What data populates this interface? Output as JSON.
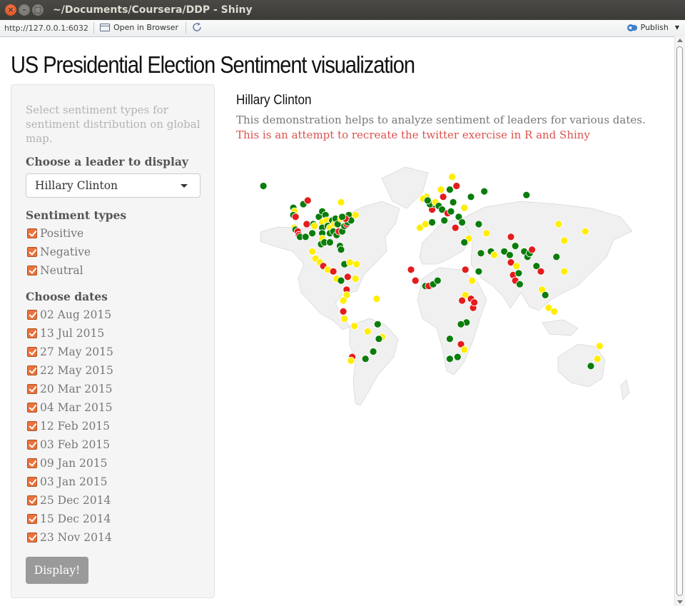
{
  "window": {
    "title": "~/Documents/Coursera/DDP - Shiny",
    "close_glyph": "×",
    "min_glyph": "–",
    "max_glyph": "□"
  },
  "toolbar": {
    "url": "http://127.0.0.1:6032",
    "open_in_browser": "Open in Browser",
    "publish": "Publish",
    "publish_icon": "publish-icon",
    "refresh_icon": "refresh-icon"
  },
  "page": {
    "title": "US Presidential Election Sentiment visualization"
  },
  "sidebar": {
    "help_text": "Select sentiment types for sentiment distribution on global map.",
    "leader_label": "Choose a leader to display",
    "leader_selected": "Hillary Clinton",
    "sentiment_label": "Sentiment types",
    "sentiments": [
      {
        "label": "Positive",
        "checked": true
      },
      {
        "label": "Negative",
        "checked": true
      },
      {
        "label": "Neutral",
        "checked": true
      }
    ],
    "dates_label": "Choose dates",
    "dates": [
      {
        "label": "02 Aug 2015",
        "checked": true
      },
      {
        "label": "13 Jul 2015",
        "checked": true
      },
      {
        "label": "27 May 2015",
        "checked": true
      },
      {
        "label": "22 May 2015",
        "checked": true
      },
      {
        "label": "20 Mar 2015",
        "checked": true
      },
      {
        "label": "04 Mar 2015",
        "checked": true
      },
      {
        "label": "12 Feb 2015",
        "checked": true
      },
      {
        "label": "03 Feb 2015",
        "checked": true
      },
      {
        "label": "09 Jan 2015",
        "checked": true
      },
      {
        "label": "03 Jan 2015",
        "checked": true
      },
      {
        "label": "25 Dec 2014",
        "checked": true
      },
      {
        "label": "15 Dec 2014",
        "checked": true
      },
      {
        "label": "23 Nov 2014",
        "checked": true
      }
    ],
    "button_label": "Display!",
    "accent_color": "#e9733e"
  },
  "main": {
    "heading": "Hillary Clinton",
    "description": "This demonstration helps to analyze sentiment of leaders for various dates.",
    "description_red": "This is an attempt to recreate the twitter exercise in R and Shiny"
  },
  "map": {
    "colors": {
      "positive": "#0a7d0a",
      "negative": "#e51c1c",
      "neutral": "#ffee00",
      "land": "#f0f0f0",
      "border": "#d8d8d8"
    },
    "points": [
      {
        "lon": -150,
        "lat": 61,
        "s": "positive"
      },
      {
        "lon": -123,
        "lat": 49,
        "s": "positive"
      },
      {
        "lon": -122,
        "lat": 47,
        "s": "neutral"
      },
      {
        "lon": -123,
        "lat": 45,
        "s": "positive"
      },
      {
        "lon": -121,
        "lat": 44,
        "s": "negative"
      },
      {
        "lon": -122,
        "lat": 38,
        "s": "neutral"
      },
      {
        "lon": -121,
        "lat": 37,
        "s": "positive"
      },
      {
        "lon": -119,
        "lat": 36,
        "s": "red_placeholder"
      },
      {
        "lon": -118,
        "lat": 34,
        "s": "negative"
      },
      {
        "lon": -117,
        "lat": 33,
        "s": "positive"
      },
      {
        "lon": -112,
        "lat": 33,
        "s": "positive"
      },
      {
        "lon": -111,
        "lat": 40,
        "s": "negative"
      },
      {
        "lon": -105,
        "lat": 40,
        "s": "positive"
      },
      {
        "lon": -104,
        "lat": 39,
        "s": "neutral"
      },
      {
        "lon": -106,
        "lat": 35,
        "s": "positive"
      },
      {
        "lon": -100,
        "lat": 44,
        "s": "positive"
      },
      {
        "lon": -97,
        "lat": 47,
        "s": "positive"
      },
      {
        "lon": -97,
        "lat": 41,
        "s": "neutral"
      },
      {
        "lon": -97,
        "lat": 38,
        "s": "positive"
      },
      {
        "lon": -97,
        "lat": 35,
        "s": "positive"
      },
      {
        "lon": -97,
        "lat": 32,
        "s": "neutral"
      },
      {
        "lon": -98,
        "lat": 29,
        "s": "positive"
      },
      {
        "lon": -95,
        "lat": 30,
        "s": "positive"
      },
      {
        "lon": -94,
        "lat": 45,
        "s": "positive"
      },
      {
        "lon": -93,
        "lat": 42,
        "s": "neutral"
      },
      {
        "lon": -92,
        "lat": 39,
        "s": "positive"
      },
      {
        "lon": -90,
        "lat": 38,
        "s": "neutral"
      },
      {
        "lon": -90,
        "lat": 35,
        "s": "positive"
      },
      {
        "lon": -90,
        "lat": 30,
        "s": "positive"
      },
      {
        "lon": -88,
        "lat": 42,
        "s": "positive"
      },
      {
        "lon": -87,
        "lat": 36,
        "s": "positive"
      },
      {
        "lon": -86,
        "lat": 40,
        "s": "neutral"
      },
      {
        "lon": -85,
        "lat": 43,
        "s": "positive"
      },
      {
        "lon": -84,
        "lat": 34,
        "s": "positive"
      },
      {
        "lon": -83,
        "lat": 40,
        "s": "positive"
      },
      {
        "lon": -82,
        "lat": 36,
        "s": "negative"
      },
      {
        "lon": -81,
        "lat": 28,
        "s": "positive"
      },
      {
        "lon": -80,
        "lat": 43,
        "s": "neutral"
      },
      {
        "lon": -80,
        "lat": 26,
        "s": "positive"
      },
      {
        "lon": -79,
        "lat": 36,
        "s": "positive"
      },
      {
        "lon": -77,
        "lat": 39,
        "s": "positive"
      },
      {
        "lon": -75,
        "lat": 40,
        "s": "negative"
      },
      {
        "lon": -74,
        "lat": 41,
        "s": "positive"
      },
      {
        "lon": -73,
        "lat": 45,
        "s": "positive"
      },
      {
        "lon": -71,
        "lat": 42,
        "s": "positive"
      },
      {
        "lon": -76,
        "lat": 43,
        "s": "negative"
      },
      {
        "lon": -80,
        "lat": 52,
        "s": "neutral"
      },
      {
        "lon": -79,
        "lat": 44,
        "s": "positive"
      },
      {
        "lon": -67,
        "lat": 45,
        "s": "neutral"
      },
      {
        "lon": -114,
        "lat": 51,
        "s": "positive"
      },
      {
        "lon": -110,
        "lat": 53,
        "s": "negative"
      },
      {
        "lon": -106,
        "lat": 25,
        "s": "neutral"
      },
      {
        "lon": -103,
        "lat": 21,
        "s": "neutral"
      },
      {
        "lon": -99,
        "lat": 19,
        "s": "neutral"
      },
      {
        "lon": -96,
        "lat": 17,
        "s": "negative"
      },
      {
        "lon": -92,
        "lat": 15,
        "s": "neutral"
      },
      {
        "lon": -87,
        "lat": 14,
        "s": "negative"
      },
      {
        "lon": -84,
        "lat": 10,
        "s": "neutral"
      },
      {
        "lon": -80,
        "lat": 9,
        "s": "positive"
      },
      {
        "lon": -77,
        "lat": 18,
        "s": "positive"
      },
      {
        "lon": -72,
        "lat": 19,
        "s": "neutral"
      },
      {
        "lon": -66,
        "lat": 18,
        "s": "neutral"
      },
      {
        "lon": -74,
        "lat": 11,
        "s": "negative"
      },
      {
        "lon": -67,
        "lat": 10,
        "s": "neutral"
      },
      {
        "lon": -75,
        "lat": 4,
        "s": "negative"
      },
      {
        "lon": -75,
        "lat": 1,
        "s": "neutral"
      },
      {
        "lon": -78,
        "lat": -2,
        "s": "neutral"
      },
      {
        "lon": -77,
        "lat": -12,
        "s": "neutral"
      },
      {
        "lon": -78,
        "lat": -8,
        "s": "negative"
      },
      {
        "lon": -68,
        "lat": -16,
        "s": "neutral"
      },
      {
        "lon": -48,
        "lat": -1,
        "s": "neutral"
      },
      {
        "lon": -47,
        "lat": -15,
        "s": "positive"
      },
      {
        "lon": -43,
        "lat": -22,
        "s": "neutral"
      },
      {
        "lon": -46,
        "lat": -23,
        "s": "positive"
      },
      {
        "lon": -51,
        "lat": -30,
        "s": "positive"
      },
      {
        "lon": -56,
        "lat": -19,
        "s": "neutral"
      },
      {
        "lon": -58,
        "lat": -34,
        "s": "positive"
      },
      {
        "lon": -70,
        "lat": -33,
        "s": "negative"
      },
      {
        "lon": -71,
        "lat": -35,
        "s": "neutral"
      },
      {
        "lon": -9,
        "lat": 38,
        "s": "neutral"
      },
      {
        "lon": -4,
        "lat": 40,
        "s": "neutral"
      },
      {
        "lon": 2,
        "lat": 41,
        "s": "positive"
      },
      {
        "lon": 2,
        "lat": 48,
        "s": "negative"
      },
      {
        "lon": 4,
        "lat": 51,
        "s": "positive"
      },
      {
        "lon": 0,
        "lat": 51,
        "s": "positive"
      },
      {
        "lon": -3,
        "lat": 55,
        "s": "neutral"
      },
      {
        "lon": -6,
        "lat": 54,
        "s": "neutral"
      },
      {
        "lon": -2,
        "lat": 53,
        "s": "positive"
      },
      {
        "lon": 5,
        "lat": 52,
        "s": "neutral"
      },
      {
        "lon": 8,
        "lat": 50,
        "s": "positive"
      },
      {
        "lon": 11,
        "lat": 48,
        "s": "positive"
      },
      {
        "lon": 12,
        "lat": 55,
        "s": "negative"
      },
      {
        "lon": 10,
        "lat": 59,
        "s": "neutral"
      },
      {
        "lon": 18,
        "lat": 59,
        "s": "positive"
      },
      {
        "lon": 24,
        "lat": 61,
        "s": "negative"
      },
      {
        "lon": 13,
        "lat": 42,
        "s": "positive"
      },
      {
        "lon": 16,
        "lat": 46,
        "s": "negative"
      },
      {
        "lon": 19,
        "lat": 47,
        "s": "positive"
      },
      {
        "lon": 21,
        "lat": 52,
        "s": "positive"
      },
      {
        "lon": 23,
        "lat": 38,
        "s": "negative"
      },
      {
        "lon": 26,
        "lat": 44,
        "s": "positive"
      },
      {
        "lon": 29,
        "lat": 41,
        "s": "positive"
      },
      {
        "lon": 31,
        "lat": 49,
        "s": "neutral"
      },
      {
        "lon": 37,
        "lat": 55,
        "s": "positive"
      },
      {
        "lon": 20,
        "lat": 66,
        "s": "neutral"
      },
      {
        "lon": 49,
        "lat": 58,
        "s": "positive"
      },
      {
        "lon": 44,
        "lat": 40,
        "s": "positive"
      },
      {
        "lon": 51,
        "lat": 35,
        "s": "neutral"
      },
      {
        "lon": 35,
        "lat": 32,
        "s": "neutral"
      },
      {
        "lon": 31,
        "lat": 30,
        "s": "positive"
      },
      {
        "lon": 46,
        "lat": 24,
        "s": "positive"
      },
      {
        "lon": 55,
        "lat": 25,
        "s": "positive"
      },
      {
        "lon": 58,
        "lat": 23,
        "s": "neutral"
      },
      {
        "lon": 67,
        "lat": 25,
        "s": "positive"
      },
      {
        "lon": 73,
        "lat": 33,
        "s": "negative"
      },
      {
        "lon": 77,
        "lat": 28,
        "s": "positive"
      },
      {
        "lon": 72,
        "lat": 23,
        "s": "positive"
      },
      {
        "lon": 73,
        "lat": 19,
        "s": "negative"
      },
      {
        "lon": 78,
        "lat": 17,
        "s": "neutral"
      },
      {
        "lon": 75,
        "lat": 12,
        "s": "negative"
      },
      {
        "lon": 80,
        "lat": 13,
        "s": "positive"
      },
      {
        "lon": 77,
        "lat": 9,
        "s": "negative"
      },
      {
        "lon": 81,
        "lat": 7,
        "s": "positive"
      },
      {
        "lon": 85,
        "lat": 25,
        "s": "positive"
      },
      {
        "lon": 88,
        "lat": 22,
        "s": "positive"
      },
      {
        "lon": 90,
        "lat": 24,
        "s": "positive"
      },
      {
        "lon": 92,
        "lat": 26,
        "s": "negative"
      },
      {
        "lon": 96,
        "lat": 17,
        "s": "positive"
      },
      {
        "lon": 100,
        "lat": 14,
        "s": "negative"
      },
      {
        "lon": 101,
        "lat": 4,
        "s": "neutral"
      },
      {
        "lon": 104,
        "lat": 1,
        "s": "positive"
      },
      {
        "lon": 107,
        "lat": -6,
        "s": "neutral"
      },
      {
        "lon": 112,
        "lat": -8,
        "s": "neutral"
      },
      {
        "lon": 116,
        "lat": 40,
        "s": "neutral"
      },
      {
        "lon": 121,
        "lat": 31,
        "s": "neutral"
      },
      {
        "lon": 114,
        "lat": 22,
        "s": "positive"
      },
      {
        "lon": 121,
        "lat": 14,
        "s": "neutral"
      },
      {
        "lon": 87,
        "lat": 56,
        "s": "positive"
      },
      {
        "lon": 140,
        "lat": 36,
        "s": "neutral"
      },
      {
        "lon": 151,
        "lat": -34,
        "s": "neutral"
      },
      {
        "lon": 145,
        "lat": -38,
        "s": "positive"
      },
      {
        "lon": 153,
        "lat": -27,
        "s": "neutral"
      },
      {
        "lon": -17,
        "lat": 15,
        "s": "negative"
      },
      {
        "lon": -13,
        "lat": 9,
        "s": "negative"
      },
      {
        "lon": -4,
        "lat": 6,
        "s": "positive"
      },
      {
        "lon": -1,
        "lat": 6,
        "s": "negative"
      },
      {
        "lon": 3,
        "lat": 7,
        "s": "positive"
      },
      {
        "lon": 7,
        "lat": 9,
        "s": "positive"
      },
      {
        "lon": 32,
        "lat": 15,
        "s": "negative"
      },
      {
        "lon": 38,
        "lat": 9,
        "s": "neutral"
      },
      {
        "lon": 32,
        "lat": 1,
        "s": "neutral"
      },
      {
        "lon": 37,
        "lat": -1,
        "s": "negative"
      },
      {
        "lon": 39,
        "lat": -6,
        "s": "negative"
      },
      {
        "lon": 40,
        "lat": -3,
        "s": "negative"
      },
      {
        "lon": 29,
        "lat": -2,
        "s": "negative"
      },
      {
        "lon": 33,
        "lat": -14,
        "s": "positive"
      },
      {
        "lon": 28,
        "lat": -15,
        "s": "positive"
      },
      {
        "lon": 18,
        "lat": -23,
        "s": "positive"
      },
      {
        "lon": 28,
        "lat": -26,
        "s": "negative"
      },
      {
        "lon": 31,
        "lat": -29,
        "s": "neutral"
      },
      {
        "lon": 25,
        "lat": -33,
        "s": "positive"
      },
      {
        "lon": 18,
        "lat": -34,
        "s": "positive"
      },
      {
        "lon": 44,
        "lat": 14,
        "s": "positive"
      }
    ]
  }
}
